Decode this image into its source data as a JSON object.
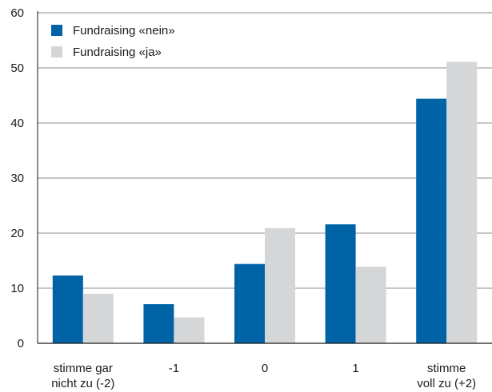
{
  "chart_data": {
    "type": "bar",
    "title": "",
    "xlabel": "",
    "ylabel": "",
    "ylim": [
      0,
      60
    ],
    "yticks": [
      0,
      10,
      20,
      30,
      40,
      50,
      60
    ],
    "grid": true,
    "legend_position": "top-left",
    "categories": [
      [
        "stimme gar",
        "nicht zu (-2)"
      ],
      [
        "-1"
      ],
      [
        "0"
      ],
      [
        "1"
      ],
      [
        "stimme",
        "voll zu (+2)"
      ]
    ],
    "series": [
      {
        "name": "Fundraising «nein»",
        "color": "#0063a6",
        "values": [
          12.3,
          7.1,
          14.4,
          21.6,
          44.4
        ]
      },
      {
        "name": "Fundraising «ja»",
        "color": "#d5d6d8",
        "values": [
          9.0,
          4.7,
          20.9,
          13.9,
          51.1
        ]
      }
    ]
  }
}
